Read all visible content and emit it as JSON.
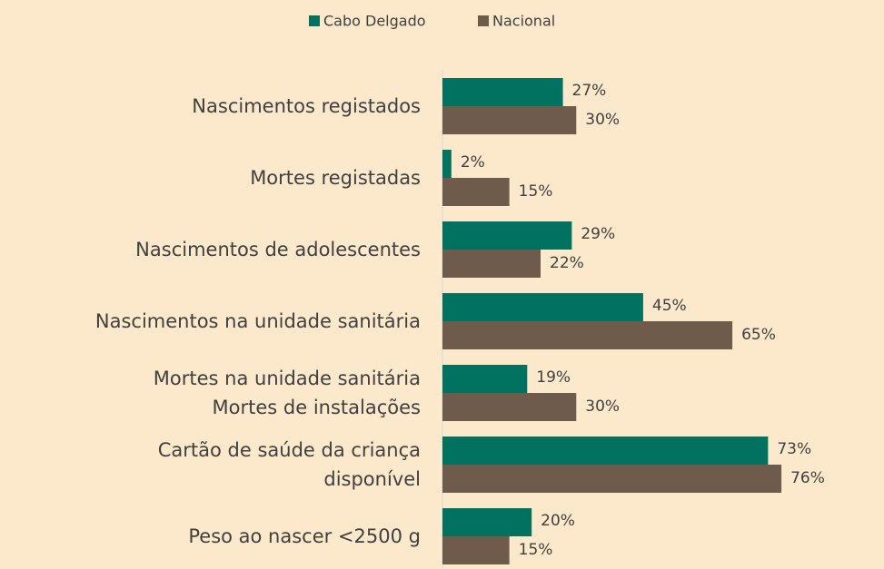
{
  "chart_data": {
    "type": "hbar",
    "categories": [
      "Nascimentos registados",
      "Mortes registadas",
      "Nascimentos de adolescentes",
      "Nascimentos na unidade sanitária",
      "Mortes na unidade sanitária\nMortes de instalações",
      "Cartão de saúde da criança\ndisponível",
      "Peso ao nascer <2500 g"
    ],
    "series": [
      {
        "name": "Cabo Delgado",
        "color": "#00725f",
        "values": [
          27,
          2,
          29,
          45,
          19,
          73,
          20
        ],
        "value_labels": [
          "27%",
          "2%",
          "29%",
          "45%",
          "19%",
          "73%",
          "20%"
        ]
      },
      {
        "name": "Nacional",
        "color": "#6f5b4b",
        "values": [
          30,
          15,
          22,
          65,
          30,
          76,
          15
        ],
        "value_labels": [
          "30%",
          "15%",
          "22%",
          "65%",
          "30%",
          "76%",
          "15%"
        ]
      }
    ],
    "xlim": [
      0,
      99
    ],
    "legend": "top"
  }
}
